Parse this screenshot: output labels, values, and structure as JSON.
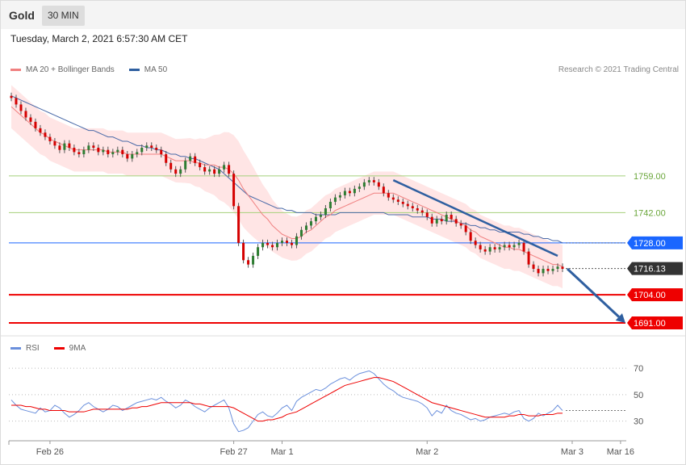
{
  "header": {
    "instrument": "Gold",
    "timeframe": "30 MIN"
  },
  "datetime": "Tuesday, March 2, 2021 6:57:30 AM CET",
  "legend": {
    "ma20_label": "MA 20 + Bollinger Bands",
    "ma50_label": "MA 50",
    "credit": "Research © 2021 Trading Central"
  },
  "rsi_legend": {
    "rsi_label": "RSI",
    "ma_label": "9MA"
  },
  "colors": {
    "up": "#2e7d32",
    "down": "#d50000",
    "ma20": "#f08080",
    "ma50": "#4a6aa8",
    "band": "#ffdede",
    "support": "#ee0000",
    "resistance": "#8bc34a",
    "pivot": "#1a66ff",
    "price": "#333333",
    "arrow": "#2f5fa0",
    "rsi": "#6a8fdc"
  },
  "levels": [
    {
      "label": "1759.00",
      "value": 1759.0,
      "kind": "resistance"
    },
    {
      "label": "1742.00",
      "value": 1742.0,
      "kind": "resistance"
    },
    {
      "label": "1728.00",
      "value": 1728.0,
      "kind": "pivot"
    },
    {
      "label": "1716.13",
      "value": 1716.13,
      "kind": "price"
    },
    {
      "label": "1704.00",
      "value": 1704.0,
      "kind": "support"
    },
    {
      "label": "1691.00",
      "value": 1691.0,
      "kind": "support"
    }
  ],
  "x_axis": {
    "ticks": [
      "Feb 26",
      "Feb 27",
      "Mar 1",
      "Mar 2",
      "Mar 3",
      "Mar 16"
    ]
  },
  "rsi_axis": {
    "ticks": [
      "70",
      "50",
      "30"
    ]
  },
  "chart_data": [
    {
      "type": "candlestick",
      "title": "Gold",
      "timeframe": "30 MIN",
      "x_ticks": [
        "Feb 26",
        "Feb 27",
        "Mar 1",
        "Mar 2",
        "Mar 3",
        "Mar 16"
      ],
      "ylim": [
        1688,
        1800
      ],
      "close": [
        1795,
        1792,
        1789,
        1786,
        1784,
        1781,
        1779,
        1777,
        1775,
        1773,
        1771,
        1774,
        1772,
        1770,
        1769,
        1771,
        1773,
        1772,
        1770,
        1771,
        1769,
        1770,
        1771,
        1769,
        1767,
        1769,
        1770,
        1772,
        1773,
        1772,
        1771,
        1769,
        1765,
        1762,
        1760,
        1762,
        1766,
        1768,
        1765,
        1763,
        1761,
        1762,
        1760,
        1762,
        1764,
        1760,
        1745,
        1728,
        1720,
        1718,
        1722,
        1726,
        1728,
        1727,
        1726,
        1728,
        1729,
        1728,
        1727,
        1731,
        1734,
        1736,
        1738,
        1740,
        1741,
        1744,
        1747,
        1749,
        1750,
        1752,
        1751,
        1753,
        1754,
        1756,
        1757,
        1756,
        1754,
        1751,
        1749,
        1748,
        1747,
        1746,
        1745,
        1744,
        1743,
        1742,
        1740,
        1737,
        1739,
        1738,
        1741,
        1739,
        1737,
        1736,
        1733,
        1729,
        1727,
        1725,
        1724,
        1726,
        1725,
        1726,
        1727,
        1726,
        1727,
        1728,
        1724,
        1718,
        1716,
        1714,
        1716,
        1715,
        1716,
        1717,
        1716
      ],
      "series": [
        {
          "name": "MA 20",
          "values": [
            1791,
            1789,
            1787,
            1785,
            1783,
            1781,
            1779,
            1778,
            1776,
            1775,
            1774,
            1773,
            1772,
            1771,
            1771,
            1771,
            1771,
            1771,
            1771,
            1771,
            1770,
            1770,
            1770,
            1770,
            1769,
            1769,
            1769,
            1769,
            1769,
            1769,
            1769,
            1769,
            1768,
            1767,
            1766,
            1766,
            1766,
            1766,
            1765,
            1765,
            1764,
            1764,
            1764,
            1763,
            1763,
            1762,
            1760,
            1757,
            1753,
            1750,
            1747,
            1744,
            1741,
            1739,
            1736,
            1734,
            1732,
            1731,
            1730,
            1730,
            1731,
            1733,
            1734,
            1736,
            1738,
            1740,
            1741,
            1743,
            1744,
            1745,
            1746,
            1747,
            1748,
            1749,
            1750,
            1751,
            1751,
            1751,
            1751,
            1751,
            1750,
            1749,
            1748,
            1747,
            1746,
            1745,
            1744,
            1743,
            1742,
            1741,
            1740,
            1739,
            1738,
            1737,
            1736,
            1734,
            1733,
            1731,
            1730,
            1729,
            1728,
            1727,
            1726,
            1726,
            1725,
            1725,
            1724,
            1723,
            1722,
            1721,
            1720,
            1719,
            1718,
            1718,
            1717
          ]
        },
        {
          "name": "MA 50",
          "values": [
            1796,
            1795,
            1794,
            1793,
            1792,
            1791,
            1790,
            1789,
            1788,
            1787,
            1786,
            1785,
            1784,
            1783,
            1782,
            1781,
            1780,
            1780,
            1779,
            1778,
            1777,
            1777,
            1776,
            1775,
            1775,
            1774,
            1773,
            1773,
            1772,
            1772,
            1771,
            1771,
            1770,
            1769,
            1769,
            1768,
            1768,
            1767,
            1767,
            1766,
            1765,
            1764,
            1763,
            1762,
            1760,
            1758,
            1756,
            1754,
            1752,
            1750,
            1749,
            1748,
            1747,
            1746,
            1745,
            1744,
            1744,
            1743,
            1743,
            1742,
            1742,
            1742,
            1742,
            1741,
            1741,
            1741,
            1741,
            1741,
            1742,
            1742,
            1742,
            1742,
            1742,
            1742,
            1742,
            1742,
            1742,
            1742,
            1741,
            1741,
            1741,
            1741,
            1741,
            1740,
            1740,
            1740,
            1740,
            1739,
            1739,
            1739,
            1738,
            1738,
            1738,
            1737,
            1737,
            1736,
            1736,
            1735,
            1735,
            1734,
            1734,
            1733,
            1733,
            1733,
            1733,
            1733,
            1732,
            1732,
            1731,
            1731,
            1730,
            1730,
            1729,
            1729,
            1728
          ]
        }
      ],
      "annotations": [
        {
          "type": "trendline",
          "from": [
            79,
            1757
          ],
          "to": [
            113,
            1722
          ]
        },
        {
          "type": "arrow",
          "from": [
            115,
            1716
          ],
          "to": [
            127,
            1691
          ]
        }
      ],
      "levels": [
        1759.0,
        1742.0,
        1728.0,
        1716.13,
        1704.0,
        1691.0
      ]
    },
    {
      "type": "line",
      "title": "RSI",
      "ylim": [
        20,
        75
      ],
      "yticks": [
        70,
        50,
        30
      ],
      "series": [
        {
          "name": "RSI",
          "values": [
            46,
            42,
            39,
            38,
            37,
            36,
            40,
            37,
            38,
            42,
            40,
            36,
            33,
            35,
            38,
            42,
            44,
            41,
            39,
            37,
            39,
            42,
            41,
            38,
            40,
            42,
            44,
            45,
            46,
            47,
            46,
            48,
            45,
            43,
            40,
            42,
            46,
            44,
            41,
            39,
            37,
            40,
            42,
            44,
            46,
            40,
            28,
            22,
            23,
            25,
            30,
            35,
            37,
            34,
            33,
            36,
            40,
            42,
            38,
            45,
            48,
            50,
            52,
            54,
            53,
            55,
            58,
            60,
            62,
            63,
            61,
            64,
            66,
            67,
            68,
            66,
            62,
            58,
            55,
            53,
            50,
            48,
            47,
            46,
            45,
            43,
            40,
            34,
            38,
            36,
            42,
            38,
            36,
            35,
            33,
            31,
            32,
            30,
            31,
            33,
            34,
            35,
            36,
            35,
            37,
            38,
            32,
            30,
            32,
            36,
            34,
            36,
            38,
            42,
            38
          ]
        },
        {
          "name": "9MA",
          "values": [
            42,
            42,
            42,
            41,
            41,
            40,
            39,
            39,
            38,
            38,
            38,
            38,
            37,
            37,
            37,
            37,
            38,
            39,
            39,
            39,
            39,
            39,
            39,
            39,
            39,
            40,
            40,
            41,
            41,
            42,
            43,
            44,
            44,
            44,
            44,
            44,
            44,
            44,
            43,
            43,
            42,
            41,
            41,
            41,
            41,
            41,
            40,
            38,
            36,
            34,
            32,
            30,
            30,
            31,
            31,
            32,
            33,
            35,
            36,
            37,
            39,
            41,
            43,
            45,
            47,
            49,
            51,
            53,
            55,
            57,
            58,
            59,
            60,
            61,
            62,
            63,
            63,
            62,
            61,
            60,
            58,
            56,
            54,
            52,
            50,
            48,
            46,
            44,
            43,
            42,
            41,
            40,
            39,
            38,
            37,
            36,
            35,
            34,
            33,
            33,
            33,
            33,
            33,
            34,
            34,
            35,
            35,
            34,
            34,
            34,
            35,
            35,
            35,
            36,
            36
          ]
        }
      ]
    }
  ]
}
